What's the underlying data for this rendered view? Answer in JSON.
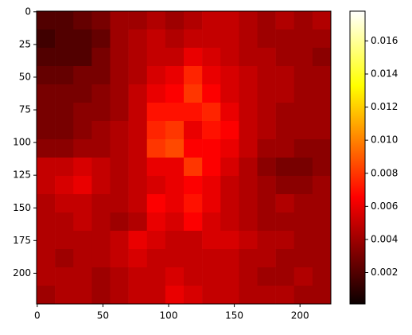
{
  "chart_data": {
    "type": "heatmap",
    "colormap": "hot",
    "xlim": [
      -0.5,
      223.5
    ],
    "ylim": [
      223.5,
      -0.5
    ],
    "xticks": [
      0,
      50,
      100,
      150,
      200
    ],
    "yticks": [
      0,
      25,
      50,
      75,
      100,
      125,
      150,
      175,
      200
    ],
    "clim": [
      0.0001,
      0.0178
    ],
    "cticks": [
      0.002,
      0.004,
      0.006,
      0.008,
      {
        "value": 0.01,
        "label": "0.010"
      },
      0.012,
      0.014,
      0.016
    ],
    "values": [
      [
        0.002,
        0.002,
        0.0025,
        0.003,
        0.004,
        0.004,
        0.0045,
        0.004,
        0.0045,
        0.005,
        0.005,
        0.0045,
        0.004,
        0.0045,
        0.004,
        0.0045
      ],
      [
        0.0015,
        0.002,
        0.002,
        0.0025,
        0.004,
        0.0045,
        0.005,
        0.0045,
        0.005,
        0.005,
        0.005,
        0.0045,
        0.004,
        0.004,
        0.004,
        0.004
      ],
      [
        0.002,
        0.002,
        0.002,
        0.003,
        0.004,
        0.0045,
        0.005,
        0.005,
        0.006,
        0.0055,
        0.005,
        0.0045,
        0.0045,
        0.004,
        0.004,
        0.0035
      ],
      [
        0.0025,
        0.0025,
        0.003,
        0.003,
        0.004,
        0.0045,
        0.0055,
        0.006,
        0.0075,
        0.006,
        0.0055,
        0.005,
        0.0045,
        0.0045,
        0.004,
        0.004
      ],
      [
        0.003,
        0.003,
        0.003,
        0.0035,
        0.004,
        0.005,
        0.006,
        0.0065,
        0.008,
        0.0065,
        0.0055,
        0.005,
        0.0045,
        0.0045,
        0.004,
        0.004
      ],
      [
        0.003,
        0.003,
        0.0035,
        0.0035,
        0.004,
        0.005,
        0.007,
        0.007,
        0.007,
        0.0075,
        0.006,
        0.005,
        0.0045,
        0.004,
        0.004,
        0.004
      ],
      [
        0.003,
        0.003,
        0.0035,
        0.004,
        0.0045,
        0.005,
        0.0075,
        0.008,
        0.006,
        0.007,
        0.0065,
        0.005,
        0.0045,
        0.004,
        0.004,
        0.004
      ],
      [
        0.0035,
        0.0035,
        0.004,
        0.004,
        0.0045,
        0.005,
        0.008,
        0.0085,
        0.0065,
        0.0065,
        0.006,
        0.005,
        0.004,
        0.004,
        0.0035,
        0.0035
      ],
      [
        0.005,
        0.005,
        0.0055,
        0.005,
        0.0045,
        0.005,
        0.006,
        0.006,
        0.008,
        0.0065,
        0.0055,
        0.0045,
        0.0035,
        0.003,
        0.003,
        0.0035
      ],
      [
        0.005,
        0.0055,
        0.006,
        0.005,
        0.0045,
        0.005,
        0.0055,
        0.006,
        0.0065,
        0.006,
        0.005,
        0.0045,
        0.004,
        0.0035,
        0.0035,
        0.004
      ],
      [
        0.0045,
        0.005,
        0.005,
        0.0045,
        0.0045,
        0.005,
        0.0065,
        0.006,
        0.007,
        0.006,
        0.005,
        0.0045,
        0.004,
        0.0045,
        0.004,
        0.004
      ],
      [
        0.0045,
        0.0045,
        0.005,
        0.0045,
        0.004,
        0.0045,
        0.006,
        0.0055,
        0.0065,
        0.0055,
        0.005,
        0.0045,
        0.004,
        0.004,
        0.004,
        0.004
      ],
      [
        0.0045,
        0.0045,
        0.0045,
        0.0045,
        0.005,
        0.006,
        0.0055,
        0.005,
        0.005,
        0.0055,
        0.0055,
        0.005,
        0.0045,
        0.0045,
        0.004,
        0.004
      ],
      [
        0.0045,
        0.004,
        0.0045,
        0.0045,
        0.005,
        0.0055,
        0.005,
        0.005,
        0.005,
        0.005,
        0.005,
        0.0045,
        0.0045,
        0.004,
        0.004,
        0.004
      ],
      [
        0.0045,
        0.0045,
        0.0045,
        0.004,
        0.0045,
        0.005,
        0.005,
        0.0055,
        0.005,
        0.005,
        0.005,
        0.0045,
        0.004,
        0.004,
        0.0045,
        0.004
      ],
      [
        0.004,
        0.0045,
        0.0045,
        0.004,
        0.0045,
        0.005,
        0.005,
        0.006,
        0.0055,
        0.005,
        0.005,
        0.0045,
        0.0045,
        0.0045,
        0.004,
        0.004
      ]
    ]
  }
}
